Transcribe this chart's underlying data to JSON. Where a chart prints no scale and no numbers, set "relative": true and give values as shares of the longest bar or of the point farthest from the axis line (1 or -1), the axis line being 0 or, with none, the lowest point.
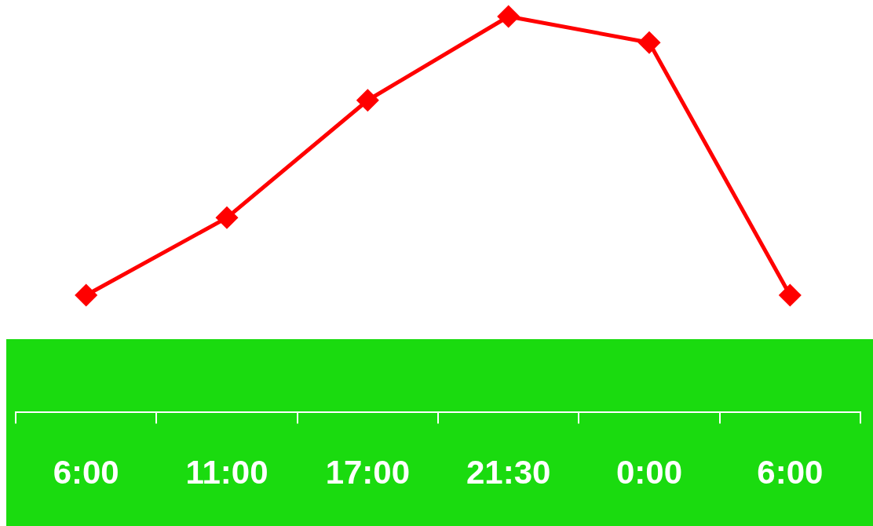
{
  "chart_data": {
    "type": "line",
    "relative": true,
    "marker": "diamond",
    "line_style": "solid",
    "categories": [
      "6:00",
      "11:00",
      "17:00",
      "21:30",
      "0:00",
      "6:00"
    ],
    "series": [
      {
        "color": "#ff0000",
        "values": [
          0.295,
          0.491,
          0.788,
          1,
          0.934,
          0.295
        ]
      }
    ]
  }
}
